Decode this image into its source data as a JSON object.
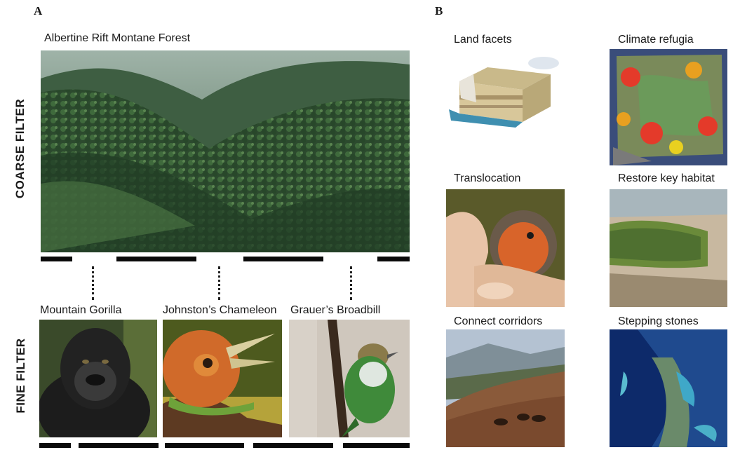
{
  "panel_a": {
    "letter": "A",
    "forest_title": "Albertine Rift Montane Forest",
    "coarse_label": "COARSE FILTER",
    "fine_label": "FINE FILTER",
    "species": [
      {
        "name": "Mountain Gorilla"
      },
      {
        "name": "Johnston’s Chameleon"
      },
      {
        "name": "Grauer’s Broadbill"
      }
    ]
  },
  "panel_b": {
    "letter": "B",
    "items": [
      {
        "label": "Land facets"
      },
      {
        "label": "Climate refugia"
      },
      {
        "label": "Translocation"
      },
      {
        "label": "Restore key habitat"
      },
      {
        "label": "Connect corridors"
      },
      {
        "label": "Stepping stones"
      }
    ]
  }
}
